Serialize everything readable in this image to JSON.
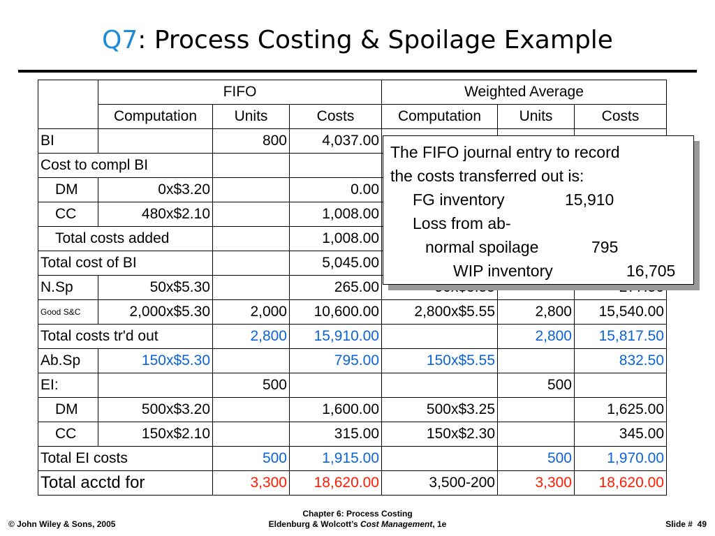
{
  "title": {
    "prefix": "Q7",
    "text": ": Process Costing & Spoilage Example"
  },
  "table": {
    "group_headers": {
      "fifo": "FIFO",
      "wa": "Weighted Average"
    },
    "col_headers": {
      "comp": "Computation",
      "units": "Units",
      "costs": "Costs"
    },
    "rows": {
      "bi": {
        "label": "BI",
        "f_units": "800",
        "f_costs": "4,037.00"
      },
      "cost_compl": {
        "label": "Cost to compl BI"
      },
      "dm1": {
        "label": "DM",
        "f_comp": "0x$3.20",
        "f_costs": "0.00"
      },
      "cc1": {
        "label": "CC",
        "f_comp": "480x$2.10",
        "f_costs": "1,008.00"
      },
      "tca": {
        "label": "Total costs added",
        "f_costs": "1,008.00"
      },
      "tcbi": {
        "label": "Total cost of BI",
        "f_costs": "5,045.00"
      },
      "nsp": {
        "label": "N.Sp",
        "f_comp": "50x$5.30",
        "f_costs": "265.00",
        "w_comp": "50x$5.55",
        "w_costs": "277.50"
      },
      "good": {
        "label": "Good S&C",
        "f_comp": "2,000x$5.30",
        "f_units": "2,000",
        "f_costs": "10,600.00",
        "w_comp": "2,800x$5.55",
        "w_units": "2,800",
        "w_costs": "15,540.00"
      },
      "tctr": {
        "label": "Total costs tr'd out",
        "f_units": "2,800",
        "f_costs": "15,910.00",
        "w_units": "2,800",
        "w_costs": "15,817.50"
      },
      "absp": {
        "label": "Ab.Sp",
        "f_comp": "150x$5.30",
        "f_costs": "795.00",
        "w_comp": "150x$5.55",
        "w_costs": "832.50"
      },
      "ei": {
        "label": "EI:",
        "f_units": "500",
        "w_units": "500"
      },
      "dm2": {
        "label": "DM",
        "f_comp": "500x$3.20",
        "f_costs": "1,600.00",
        "w_comp": "500x$3.25",
        "w_costs": "1,625.00"
      },
      "cc2": {
        "label": "CC",
        "f_comp": "150x$2.10",
        "f_costs": "315.00",
        "w_comp": "150x$2.30",
        "w_costs": "345.00"
      },
      "tei": {
        "label": "Total EI costs",
        "f_units": "500",
        "f_costs": "1,915.00",
        "w_units": "500",
        "w_costs": "1,970.00"
      },
      "tacc": {
        "label": "Total acctd for",
        "f_units": "3,300",
        "f_costs": "18,620.00",
        "w_comp": "3,500-200",
        "w_units": "3,300",
        "w_costs": "18,620.00"
      }
    }
  },
  "callout": {
    "line1": "The FIFO journal entry to record",
    "line2": "the costs transferred out is:",
    "fg_label": "FG inventory",
    "fg_amount": "15,910",
    "loss_label1": "Loss from ab-",
    "loss_label2": "normal spoilage",
    "loss_amount": "795",
    "wip_label": "WIP inventory",
    "wip_amount": "16,705"
  },
  "footer": {
    "copyright": "© John Wiley & Sons, 2005",
    "chapter": "Chapter 6: Process Costing",
    "book_prefix": "Eldenburg & Wolcott’s ",
    "book_title": "Cost Management",
    "book_suffix": ", 1e",
    "slide": "Slide #  49"
  },
  "colors": {
    "accent": "#1f8bd6",
    "blue_values": "#0b63d8",
    "red_values": "#ff1a00"
  }
}
